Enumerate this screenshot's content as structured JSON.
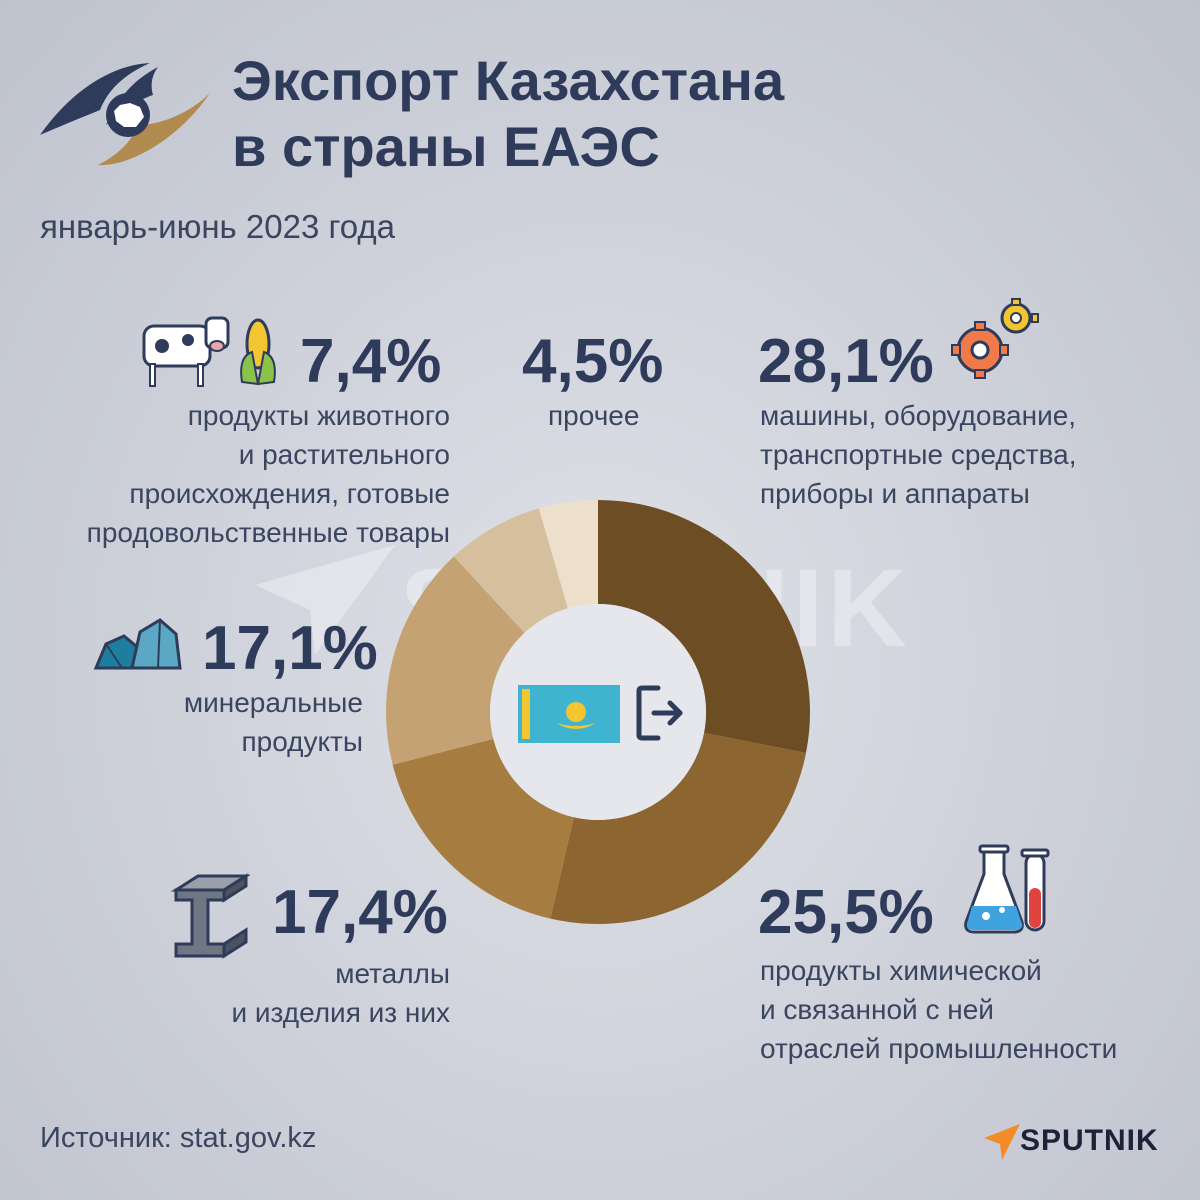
{
  "header": {
    "title_line1": "Экспорт Казахстана",
    "title_line2": "в страны ЕАЭС",
    "subtitle": "январь-июнь 2023 года"
  },
  "chart_data": {
    "type": "pie",
    "variant": "donut",
    "slices": [
      {
        "label": "машины, оборудование, транспортные средства, приборы и аппараты",
        "value": 28.1,
        "value_label": "28,1%",
        "color": "#6d4e24"
      },
      {
        "label": "продукты химической и связанной с ней отраслей промышленности",
        "value": 25.5,
        "value_label": "25,5%",
        "color": "#8c6530"
      },
      {
        "label": "металлы и изделия из них",
        "value": 17.4,
        "value_label": "17,4%",
        "color": "#a77c40"
      },
      {
        "label": "минеральные продукты",
        "value": 17.1,
        "value_label": "17,1%",
        "color": "#c4a274"
      },
      {
        "label": "продукты животного и растительного происхождения, готовые продовольственные товары",
        "value": 7.4,
        "value_label": "7,4%",
        "color": "#d6bf9d"
      },
      {
        "label": "прочее",
        "value": 4.5,
        "value_label": "4,5%",
        "color": "#ece0cd"
      }
    ]
  },
  "labels": {
    "food": {
      "pct": "7,4%",
      "lines": [
        "продукты животного",
        "и растительного",
        "происхождения, готовые",
        "продовольственные товары"
      ]
    },
    "other": {
      "pct": "4,5%",
      "lines": [
        "прочее"
      ]
    },
    "machines": {
      "pct": "28,1%",
      "lines": [
        "машины, оборудование,",
        "транспортные средства,",
        "приборы и аппараты"
      ]
    },
    "minerals": {
      "pct": "17,1%",
      "lines": [
        "минеральные",
        "продукты"
      ]
    },
    "metals": {
      "pct": "17,4%",
      "lines": [
        "металлы",
        "и изделия из них"
      ]
    },
    "chemicals": {
      "pct": "25,5%",
      "lines": [
        "продукты химической",
        "и связанной с ней",
        "отраслей промышленности"
      ]
    }
  },
  "footer": {
    "source": "Источник: stat.gov.kz",
    "brand": "SPUTNIK"
  },
  "watermark": "SPUTNIK",
  "icons": {
    "eaeu_logo": "eaeu-logo-icon",
    "food": "cow-corn-icon",
    "machines": "gears-icon",
    "minerals": "coal-icon",
    "metals": "steel-beam-icon",
    "chemicals": "flask-icon",
    "flag": "kazakhstan-flag-icon",
    "export": "export-icon"
  }
}
